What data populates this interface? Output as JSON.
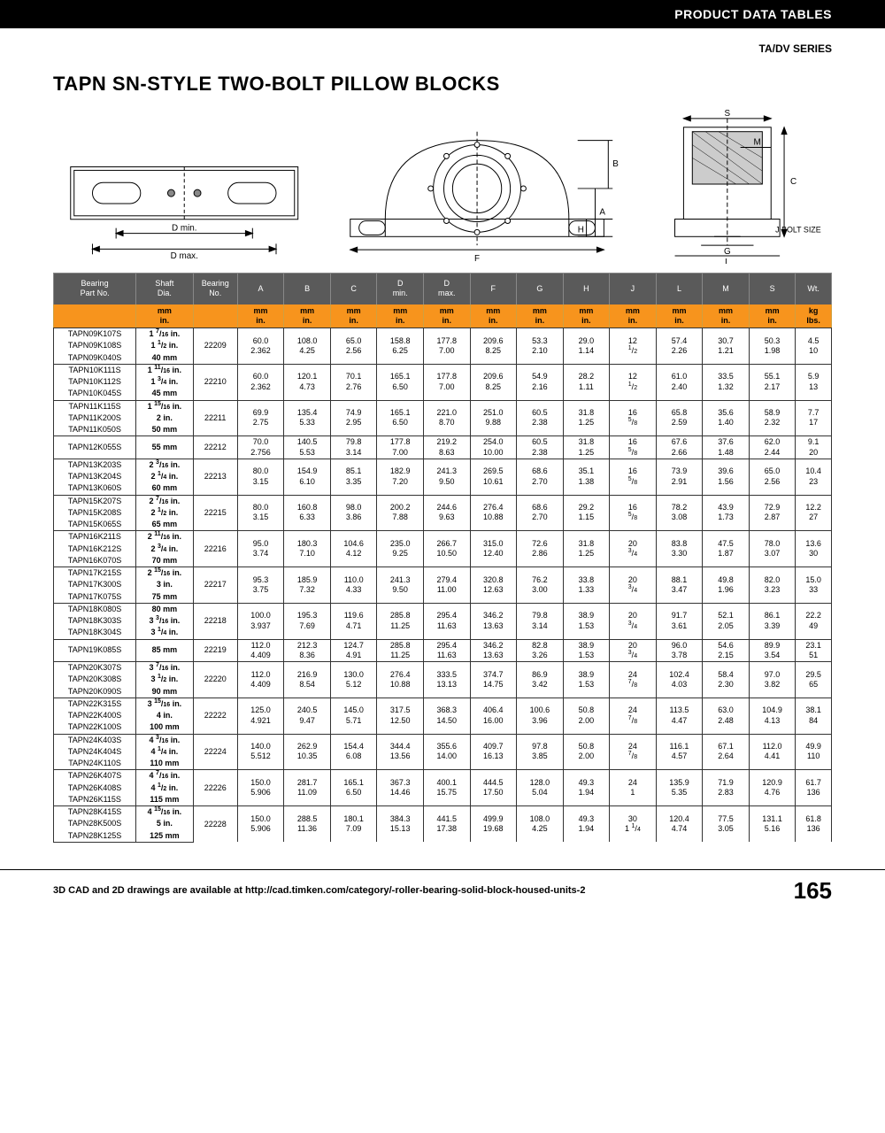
{
  "header": {
    "section": "PRODUCT DATA TABLES",
    "series": "TA/DV SERIES"
  },
  "title": "TAPN SN-STYLE TWO-BOLT PILLOW BLOCKS",
  "diagram_labels": [
    "D min.",
    "D max.",
    "F",
    "A",
    "B",
    "H",
    "S",
    "M",
    "C",
    "G",
    "L",
    "J BOLT SIZE"
  ],
  "footer": {
    "text": "3D CAD and 2D drawings are available at http://cad.timken.com/category/-roller-bearing-solid-block-housed-units-2",
    "page": "165"
  },
  "colors": {
    "header_bg": "#5a5a5a",
    "units_bg": "#f7941d",
    "rule": "#333333"
  },
  "columns": [
    "Bearing Part No.",
    "Shaft Dia.",
    "Bearing No.",
    "A",
    "B",
    "C",
    "D min.",
    "D max.",
    "F",
    "G",
    "H",
    "J",
    "L",
    "M",
    "S",
    "Wt."
  ],
  "unit_top": [
    "",
    "mm",
    "",
    "mm",
    "mm",
    "mm",
    "mm",
    "mm",
    "mm",
    "mm",
    "mm",
    "mm",
    "mm",
    "mm",
    "mm",
    "kg"
  ],
  "unit_bot": [
    "",
    "in.",
    "",
    "in.",
    "in.",
    "in.",
    "in.",
    "in.",
    "in.",
    "in.",
    "in.",
    "in.",
    "in.",
    "in.",
    "in.",
    "lbs."
  ],
  "groups": [
    {
      "parts": [
        "TAPN09K107S",
        "TAPN09K108S",
        "TAPN09K040S"
      ],
      "shafts": [
        "1 7/16 in.",
        "1 1/2 in.",
        "40 mm"
      ],
      "bearing": "22209",
      "mm": [
        "60.0",
        "108.0",
        "65.0",
        "158.8",
        "177.8",
        "209.6",
        "53.3",
        "29.0",
        "12",
        "57.4",
        "30.7",
        "50.3",
        "4.5"
      ],
      "in": [
        "2.362",
        "4.25",
        "2.56",
        "6.25",
        "7.00",
        "8.25",
        "2.10",
        "1.14",
        "1/2",
        "2.26",
        "1.21",
        "1.98",
        "10"
      ]
    },
    {
      "parts": [
        "TAPN10K111S",
        "TAPN10K112S",
        "TAPN10K045S"
      ],
      "shafts": [
        "1 11/16 in.",
        "1 3/4 in.",
        "45 mm"
      ],
      "bearing": "22210",
      "mm": [
        "60.0",
        "120.1",
        "70.1",
        "165.1",
        "177.8",
        "209.6",
        "54.9",
        "28.2",
        "12",
        "61.0",
        "33.5",
        "55.1",
        "5.9"
      ],
      "in": [
        "2.362",
        "4.73",
        "2.76",
        "6.50",
        "7.00",
        "8.25",
        "2.16",
        "1.11",
        "1/2",
        "2.40",
        "1.32",
        "2.17",
        "13"
      ]
    },
    {
      "parts": [
        "TAPN11K115S",
        "TAPN11K200S",
        "TAPN11K050S"
      ],
      "shafts": [
        "1 15/16 in.",
        "2 in.",
        "50 mm"
      ],
      "bearing": "22211",
      "mm": [
        "69.9",
        "135.4",
        "74.9",
        "165.1",
        "221.0",
        "251.0",
        "60.5",
        "31.8",
        "16",
        "65.8",
        "35.6",
        "58.9",
        "7.7"
      ],
      "in": [
        "2.75",
        "5.33",
        "2.95",
        "6.50",
        "8.70",
        "9.88",
        "2.38",
        "1.25",
        "5/8",
        "2.59",
        "1.40",
        "2.32",
        "17"
      ]
    },
    {
      "parts": [
        "TAPN12K055S"
      ],
      "shafts": [
        "55 mm"
      ],
      "bearing": "22212",
      "mm": [
        "70.0",
        "140.5",
        "79.8",
        "177.8",
        "219.2",
        "254.0",
        "60.5",
        "31.8",
        "16",
        "67.6",
        "37.6",
        "62.0",
        "9.1"
      ],
      "in": [
        "2.756",
        "5.53",
        "3.14",
        "7.00",
        "8.63",
        "10.00",
        "2.38",
        "1.25",
        "5/8",
        "2.66",
        "1.48",
        "2.44",
        "20"
      ]
    },
    {
      "parts": [
        "TAPN13K203S",
        "TAPN13K204S",
        "TAPN13K060S"
      ],
      "shafts": [
        "2 3/16 in.",
        "2 1/4 in.",
        "60 mm"
      ],
      "bearing": "22213",
      "mm": [
        "80.0",
        "154.9",
        "85.1",
        "182.9",
        "241.3",
        "269.5",
        "68.6",
        "35.1",
        "16",
        "73.9",
        "39.6",
        "65.0",
        "10.4"
      ],
      "in": [
        "3.15",
        "6.10",
        "3.35",
        "7.20",
        "9.50",
        "10.61",
        "2.70",
        "1.38",
        "5/8",
        "2.91",
        "1.56",
        "2.56",
        "23"
      ]
    },
    {
      "parts": [
        "TAPN15K207S",
        "TAPN15K208S",
        "TAPN15K065S"
      ],
      "shafts": [
        "2 7/16 in.",
        "2 1/2 in.",
        "65 mm"
      ],
      "bearing": "22215",
      "mm": [
        "80.0",
        "160.8",
        "98.0",
        "200.2",
        "244.6",
        "276.4",
        "68.6",
        "29.2",
        "16",
        "78.2",
        "43.9",
        "72.9",
        "12.2"
      ],
      "in": [
        "3.15",
        "6.33",
        "3.86",
        "7.88",
        "9.63",
        "10.88",
        "2.70",
        "1.15",
        "5/8",
        "3.08",
        "1.73",
        "2.87",
        "27"
      ]
    },
    {
      "parts": [
        "TAPN16K211S",
        "TAPN16K212S",
        "TAPN16K070S"
      ],
      "shafts": [
        "2 11/16 in.",
        "2 3/4 in.",
        "70 mm"
      ],
      "bearing": "22216",
      "mm": [
        "95.0",
        "180.3",
        "104.6",
        "235.0",
        "266.7",
        "315.0",
        "72.6",
        "31.8",
        "20",
        "83.8",
        "47.5",
        "78.0",
        "13.6"
      ],
      "in": [
        "3.74",
        "7.10",
        "4.12",
        "9.25",
        "10.50",
        "12.40",
        "2.86",
        "1.25",
        "3/4",
        "3.30",
        "1.87",
        "3.07",
        "30"
      ]
    },
    {
      "parts": [
        "TAPN17K215S",
        "TAPN17K300S",
        "TAPN17K075S"
      ],
      "shafts": [
        "2 15/16 in.",
        "3 in.",
        "75 mm"
      ],
      "bearing": "22217",
      "mm": [
        "95.3",
        "185.9",
        "110.0",
        "241.3",
        "279.4",
        "320.8",
        "76.2",
        "33.8",
        "20",
        "88.1",
        "49.8",
        "82.0",
        "15.0"
      ],
      "in": [
        "3.75",
        "7.32",
        "4.33",
        "9.50",
        "11.00",
        "12.63",
        "3.00",
        "1.33",
        "3/4",
        "3.47",
        "1.96",
        "3.23",
        "33"
      ]
    },
    {
      "parts": [
        "TAPN18K080S",
        "TAPN18K303S",
        "TAPN18K304S"
      ],
      "shafts": [
        "80 mm",
        "3 3/16 in.",
        "3 1/4 in."
      ],
      "bearing": "22218",
      "mm": [
        "100.0",
        "195.3",
        "119.6",
        "285.8",
        "295.4",
        "346.2",
        "79.8",
        "38.9",
        "20",
        "91.7",
        "52.1",
        "86.1",
        "22.2"
      ],
      "in": [
        "3.937",
        "7.69",
        "4.71",
        "11.25",
        "11.63",
        "13.63",
        "3.14",
        "1.53",
        "3/4",
        "3.61",
        "2.05",
        "3.39",
        "49"
      ]
    },
    {
      "parts": [
        "TAPN19K085S"
      ],
      "shafts": [
        "85 mm"
      ],
      "bearing": "22219",
      "mm": [
        "112.0",
        "212.3",
        "124.7",
        "285.8",
        "295.4",
        "346.2",
        "82.8",
        "38.9",
        "20",
        "96.0",
        "54.6",
        "89.9",
        "23.1"
      ],
      "in": [
        "4.409",
        "8.36",
        "4.91",
        "11.25",
        "11.63",
        "13.63",
        "3.26",
        "1.53",
        "3/4",
        "3.78",
        "2.15",
        "3.54",
        "51"
      ]
    },
    {
      "parts": [
        "TAPN20K307S",
        "TAPN20K308S",
        "TAPN20K090S"
      ],
      "shafts": [
        "3 7/16 in.",
        "3 1/2 in.",
        "90 mm"
      ],
      "bearing": "22220",
      "mm": [
        "112.0",
        "216.9",
        "130.0",
        "276.4",
        "333.5",
        "374.7",
        "86.9",
        "38.9",
        "24",
        "102.4",
        "58.4",
        "97.0",
        "29.5"
      ],
      "in": [
        "4.409",
        "8.54",
        "5.12",
        "10.88",
        "13.13",
        "14.75",
        "3.42",
        "1.53",
        "7/8",
        "4.03",
        "2.30",
        "3.82",
        "65"
      ]
    },
    {
      "parts": [
        "TAPN22K315S",
        "TAPN22K400S",
        "TAPN22K100S"
      ],
      "shafts": [
        "3 15/16 in.",
        "4 in.",
        "100 mm"
      ],
      "bearing": "22222",
      "mm": [
        "125.0",
        "240.5",
        "145.0",
        "317.5",
        "368.3",
        "406.4",
        "100.6",
        "50.8",
        "24",
        "113.5",
        "63.0",
        "104.9",
        "38.1"
      ],
      "in": [
        "4.921",
        "9.47",
        "5.71",
        "12.50",
        "14.50",
        "16.00",
        "3.96",
        "2.00",
        "7/8",
        "4.47",
        "2.48",
        "4.13",
        "84"
      ]
    },
    {
      "parts": [
        "TAPN24K403S",
        "TAPN24K404S",
        "TAPN24K110S"
      ],
      "shafts": [
        "4 3/16 in.",
        "4 1/4 in.",
        "110 mm"
      ],
      "bearing": "22224",
      "mm": [
        "140.0",
        "262.9",
        "154.4",
        "344.4",
        "355.6",
        "409.7",
        "97.8",
        "50.8",
        "24",
        "116.1",
        "67.1",
        "112.0",
        "49.9"
      ],
      "in": [
        "5.512",
        "10.35",
        "6.08",
        "13.56",
        "14.00",
        "16.13",
        "3.85",
        "2.00",
        "7/8",
        "4.57",
        "2.64",
        "4.41",
        "110"
      ]
    },
    {
      "parts": [
        "TAPN26K407S",
        "TAPN26K408S",
        "TAPN26K115S"
      ],
      "shafts": [
        "4 7/16 in.",
        "4 1/2 in.",
        "115 mm"
      ],
      "bearing": "22226",
      "mm": [
        "150.0",
        "281.7",
        "165.1",
        "367.3",
        "400.1",
        "444.5",
        "128.0",
        "49.3",
        "24",
        "135.9",
        "71.9",
        "120.9",
        "61.7"
      ],
      "in": [
        "5.906",
        "11.09",
        "6.50",
        "14.46",
        "15.75",
        "17.50",
        "5.04",
        "1.94",
        "1",
        "5.35",
        "2.83",
        "4.76",
        "136"
      ]
    },
    {
      "parts": [
        "TAPN28K415S",
        "TAPN28K500S",
        "TAPN28K125S"
      ],
      "shafts": [
        "4 15/16 in.",
        "5 in.",
        "125 mm"
      ],
      "bearing": "22228",
      "mm": [
        "150.0",
        "288.5",
        "180.1",
        "384.3",
        "441.5",
        "499.9",
        "108.0",
        "49.3",
        "30",
        "120.4",
        "77.5",
        "131.1",
        "61.8"
      ],
      "in": [
        "5.906",
        "11.36",
        "7.09",
        "15.13",
        "17.38",
        "19.68",
        "4.25",
        "1.94",
        "1 1/4",
        "4.74",
        "3.05",
        "5.16",
        "136"
      ]
    }
  ]
}
